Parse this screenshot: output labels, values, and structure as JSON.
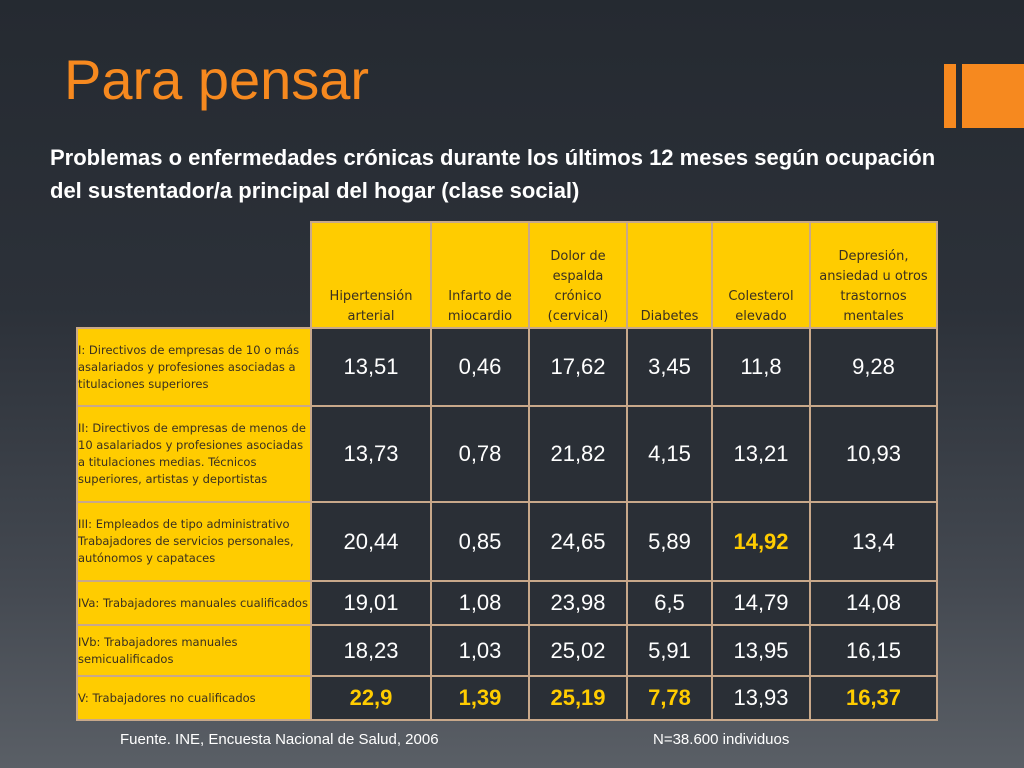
{
  "slide": {
    "title": "Para pensar",
    "subtitle": "Problemas o enfermedades crónicas durante los últimos 12 meses según ocupación del sustentador/a principal del hogar (clase social)"
  },
  "colors": {
    "accent": "#f6891f",
    "header_fill": "#ffcc00",
    "highlight_text": "#ffcc00",
    "cell_fill": "#2a2f36"
  },
  "table": {
    "columns": [
      "Hipertensión arterial",
      "Infarto de miocardio",
      "Dolor de espalda crónico (cervical)",
      "Diabetes",
      "Colesterol elevado",
      "Depresión, ansiedad u otros trastornos mentales"
    ],
    "rows": [
      {
        "label": "I: Directivos de empresas de 10 o más asalariados y profesiones asociadas a titulaciones superiores",
        "values": [
          "13,51",
          "0,46",
          "17,62",
          "3,45",
          "11,8",
          "9,28"
        ],
        "highlight": [
          false,
          false,
          false,
          false,
          false,
          false
        ]
      },
      {
        "label": "II: Directivos de empresas de menos de 10 asalariados y profesiones asociadas a titulaciones medias. Técnicos superiores, artistas y deportistas",
        "values": [
          "13,73",
          "0,78",
          "21,82",
          "4,15",
          "13,21",
          "10,93"
        ],
        "highlight": [
          false,
          false,
          false,
          false,
          false,
          false
        ]
      },
      {
        "label": "III: Empleados de tipo administrativo Trabajadores de servicios personales, autónomos y capataces",
        "values": [
          "20,44",
          "0,85",
          "24,65",
          "5,89",
          "14,92",
          "13,4"
        ],
        "highlight": [
          false,
          false,
          false,
          false,
          true,
          false
        ]
      },
      {
        "label": "IVa: Trabajadores manuales cualificados",
        "values": [
          "19,01",
          "1,08",
          "23,98",
          "6,5",
          "14,79",
          "14,08"
        ],
        "highlight": [
          false,
          false,
          false,
          false,
          false,
          false
        ]
      },
      {
        "label": "IVb: Trabajadores manuales semicualificados",
        "values": [
          "18,23",
          "1,03",
          "25,02",
          "5,91",
          "13,95",
          "16,15"
        ],
        "highlight": [
          false,
          false,
          false,
          false,
          false,
          false
        ]
      },
      {
        "label": "V: Trabajadores no cualificados",
        "values": [
          "22,9",
          "1,39",
          "25,19",
          "7,78",
          "13,93",
          "16,37"
        ],
        "highlight": [
          true,
          true,
          true,
          true,
          false,
          true
        ]
      }
    ]
  },
  "footer": {
    "source": "Fuente. INE, Encuesta Nacional de Salud, 2006",
    "sample": "N=38.600 individuos"
  }
}
